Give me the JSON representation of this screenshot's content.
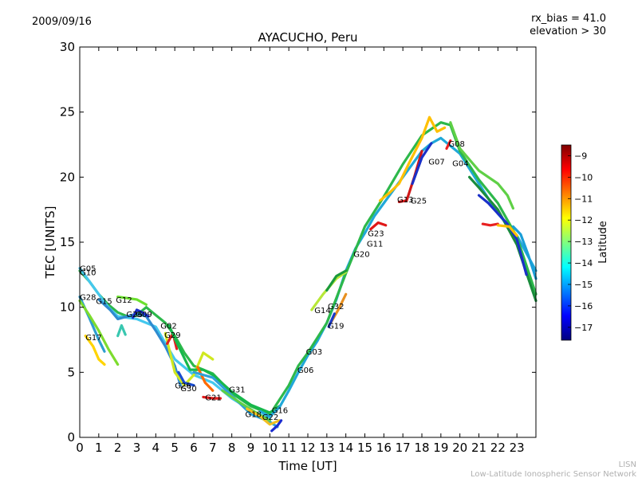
{
  "header": {
    "date": "2009/09/16",
    "rx_bias": "rx_bias = 41.0",
    "elevation": "elevation > 30"
  },
  "footer": {
    "org_short": "LISN",
    "org_full": "Low-Latitude Ionospheric Sensor Network"
  },
  "colorbar": {
    "label": "Latitude",
    "ticks": [
      -9,
      -10,
      -11,
      -12,
      -13,
      -14,
      -15,
      -16,
      -17
    ],
    "range": [
      -17.6,
      -8.5
    ],
    "colormap": [
      "#00007f",
      "#0000ff",
      "#007fff",
      "#00ffff",
      "#7fff7f",
      "#ffff00",
      "#ff7f00",
      "#ff0000",
      "#7f0000"
    ]
  },
  "chart_data": {
    "type": "line",
    "title": "AYACUCHO, Peru",
    "xlabel": "Time [UT]",
    "ylabel": "TEC [UNITS]",
    "xlim": [
      0,
      24
    ],
    "ylim": [
      0,
      30
    ],
    "xticks": [
      0,
      1,
      2,
      3,
      4,
      5,
      6,
      7,
      8,
      9,
      10,
      11,
      12,
      13,
      14,
      15,
      16,
      17,
      18,
      19,
      20,
      21,
      22,
      23
    ],
    "yticks": [
      0,
      5,
      10,
      15,
      20,
      25,
      30
    ],
    "grid": false,
    "series": [
      {
        "color": "#2db84b",
        "points": [
          [
            0,
            12.8
          ],
          [
            0.5,
            12.0
          ],
          [
            1.0,
            11.0
          ],
          [
            1.5,
            10.2
          ],
          [
            2.0,
            9.6
          ],
          [
            2.5,
            9.3
          ],
          [
            3.0,
            9.4
          ],
          [
            3.5,
            10.0
          ],
          [
            4.0,
            9.4
          ],
          [
            4.5,
            8.8
          ],
          [
            5.0,
            7.8
          ],
          [
            5.5,
            6.5
          ],
          [
            6.0,
            5.5
          ],
          [
            7.0,
            4.9
          ],
          [
            8.0,
            3.4
          ],
          [
            9.0,
            2.4
          ],
          [
            10.0,
            1.8
          ]
        ]
      },
      {
        "color": "#44c8ee",
        "points": [
          [
            0,
            13.0
          ],
          [
            0.5,
            12.0
          ],
          [
            1.0,
            11.0
          ],
          [
            1.5,
            10.0
          ],
          [
            2.0,
            9.3
          ],
          [
            3.0,
            9.1
          ],
          [
            4.0,
            8.5
          ],
          [
            5.0,
            6.0
          ],
          [
            6.0,
            4.8
          ],
          [
            7.0,
            4.2
          ],
          [
            8.0,
            3.0
          ],
          [
            9.0,
            2.1
          ],
          [
            10.0,
            1.4
          ]
        ]
      },
      {
        "color": "#2e9ed0",
        "points": [
          [
            0,
            10.8
          ],
          [
            0.5,
            9.2
          ],
          [
            1.0,
            7.5
          ],
          [
            1.3,
            6.6
          ]
        ]
      },
      {
        "color": "#7ddc2e",
        "points": [
          [
            0,
            10.5
          ],
          [
            0.5,
            9.4
          ],
          [
            1.0,
            8.2
          ],
          [
            1.5,
            6.8
          ],
          [
            2.0,
            5.6
          ]
        ]
      },
      {
        "color": "#ffd400",
        "points": [
          [
            0.3,
            7.8
          ],
          [
            0.7,
            7.0
          ],
          [
            1.0,
            6.0
          ],
          [
            1.3,
            5.6
          ]
        ]
      },
      {
        "color": "#2e8bd0",
        "points": [
          [
            1.0,
            10.6
          ],
          [
            1.6,
            9.8
          ],
          [
            2.0,
            9.1
          ],
          [
            3.0,
            9.5
          ],
          [
            3.5,
            9.3
          ],
          [
            4.0,
            8.2
          ],
          [
            4.5,
            7.0
          ],
          [
            5.0,
            5.5
          ],
          [
            5.3,
            4.0
          ]
        ]
      },
      {
        "color": "#1a2ec8",
        "points": [
          [
            2.8,
            9.2
          ],
          [
            3.0,
            9.8
          ],
          [
            3.3,
            9.6
          ],
          [
            3.6,
            9.3
          ]
        ]
      },
      {
        "color": "#6be02e",
        "points": [
          [
            2.0,
            10.8
          ],
          [
            2.5,
            10.7
          ],
          [
            3.0,
            10.6
          ],
          [
            3.5,
            10.2
          ]
        ]
      },
      {
        "color": "#39c7b0",
        "points": [
          [
            2.0,
            7.8
          ],
          [
            2.2,
            8.6
          ],
          [
            2.4,
            7.9
          ]
        ]
      },
      {
        "color": "#d0e820",
        "points": [
          [
            4.5,
            8.0
          ],
          [
            5.0,
            5.0
          ],
          [
            5.5,
            4.0
          ],
          [
            6.0,
            4.8
          ],
          [
            6.5,
            6.5
          ],
          [
            7.0,
            6.0
          ]
        ]
      },
      {
        "color": "#e02020",
        "points": [
          [
            4.6,
            7.2
          ],
          [
            4.9,
            8.0
          ],
          [
            5.1,
            6.8
          ]
        ]
      },
      {
        "color": "#16b84b",
        "points": [
          [
            4.7,
            8.6
          ],
          [
            5.0,
            7.6
          ],
          [
            5.4,
            6.4
          ],
          [
            5.8,
            5.2
          ],
          [
            6.5,
            5.2
          ],
          [
            7.0,
            4.8
          ],
          [
            8.0,
            3.5
          ],
          [
            9.0,
            2.5
          ],
          [
            10.0,
            1.9
          ],
          [
            10.5,
            2.4
          ]
        ]
      },
      {
        "color": "#1a4ccf",
        "points": [
          [
            5.2,
            5.0
          ],
          [
            5.5,
            4.2
          ],
          [
            6.0,
            4.0
          ]
        ]
      },
      {
        "color": "#ff6a00",
        "points": [
          [
            6.2,
            5.4
          ],
          [
            6.6,
            4.2
          ],
          [
            7.0,
            3.6
          ]
        ]
      },
      {
        "color": "#e01c1c",
        "points": [
          [
            6.5,
            3.1
          ],
          [
            7.0,
            3.0
          ],
          [
            7.4,
            3.0
          ]
        ]
      },
      {
        "color": "#2ea0d8",
        "points": [
          [
            6.0,
            5.0
          ],
          [
            7.0,
            4.6
          ],
          [
            8.0,
            3.2
          ],
          [
            9.0,
            1.8
          ],
          [
            10.0,
            1.2
          ],
          [
            10.4,
            0.8
          ]
        ]
      },
      {
        "color": "#5fd046",
        "points": [
          [
            7.5,
            3.6
          ],
          [
            8.5,
            2.6
          ],
          [
            9.5,
            1.7
          ],
          [
            10.0,
            1.3
          ]
        ]
      },
      {
        "color": "#f0c020",
        "points": [
          [
            8.8,
            2.2
          ],
          [
            9.5,
            1.6
          ],
          [
            10.0,
            1.0
          ],
          [
            10.5,
            1.3
          ]
        ]
      },
      {
        "color": "#1a2bd0",
        "points": [
          [
            10.1,
            0.5
          ],
          [
            10.4,
            0.9
          ],
          [
            10.6,
            1.3
          ]
        ]
      },
      {
        "color": "#20a8d8",
        "points": [
          [
            9.5,
            2.0
          ],
          [
            10.0,
            1.6
          ],
          [
            10.5,
            2.3
          ],
          [
            11.0,
            3.6
          ],
          [
            11.5,
            5.0
          ],
          [
            12.0,
            6.3
          ],
          [
            12.5,
            7.4
          ],
          [
            13.0,
            8.8
          ],
          [
            13.5,
            10.6
          ],
          [
            14.0,
            12.8
          ],
          [
            14.5,
            14.5
          ],
          [
            15.0,
            15.7
          ],
          [
            15.5,
            17.0
          ],
          [
            16.0,
            18.0
          ],
          [
            17.0,
            20.0
          ],
          [
            18.0,
            22.0
          ],
          [
            18.5,
            22.6
          ],
          [
            19.0,
            23.0
          ],
          [
            20.0,
            21.8
          ],
          [
            21.0,
            19.5
          ],
          [
            22.0,
            17.2
          ],
          [
            23.0,
            15.5
          ],
          [
            24,
            12.8
          ]
        ]
      },
      {
        "color": "#2db84b",
        "points": [
          [
            10.2,
            2.2
          ],
          [
            11.0,
            4.0
          ],
          [
            11.5,
            5.5
          ],
          [
            12.0,
            6.5
          ],
          [
            13.0,
            8.8
          ],
          [
            14.0,
            12.6
          ],
          [
            15.0,
            16.2
          ],
          [
            16.0,
            18.5
          ],
          [
            17.0,
            21.0
          ],
          [
            18.0,
            23.2
          ],
          [
            19.0,
            24.2
          ],
          [
            19.5,
            24.0
          ],
          [
            20.0,
            22.0
          ],
          [
            21.0,
            19.8
          ],
          [
            22.0,
            18.0
          ],
          [
            23.0,
            15.4
          ],
          [
            24,
            11.0
          ]
        ]
      },
      {
        "color": "#b8e838",
        "points": [
          [
            12.2,
            9.8
          ],
          [
            12.8,
            11.0
          ],
          [
            13.5,
            12.2
          ],
          [
            14.0,
            12.7
          ]
        ]
      },
      {
        "color": "#1a9a3b",
        "points": [
          [
            13.0,
            11.3
          ],
          [
            13.5,
            12.4
          ],
          [
            14.0,
            12.8
          ]
        ]
      },
      {
        "color": "#e89020",
        "points": [
          [
            13.2,
            8.8
          ],
          [
            13.6,
            9.8
          ],
          [
            14.0,
            11.0
          ]
        ]
      },
      {
        "color": "#1a3bc8",
        "points": [
          [
            13.1,
            8.5
          ],
          [
            13.4,
            9.5
          ]
        ]
      },
      {
        "color": "#e01818",
        "points": [
          [
            15.3,
            16.0
          ],
          [
            15.7,
            16.5
          ],
          [
            16.1,
            16.3
          ]
        ]
      },
      {
        "color": "#ffc000",
        "points": [
          [
            15.8,
            18.2
          ],
          [
            16.3,
            18.8
          ],
          [
            16.8,
            19.5
          ],
          [
            17.3,
            21.0
          ],
          [
            18.0,
            23.0
          ],
          [
            18.4,
            24.6
          ],
          [
            18.8,
            23.5
          ],
          [
            19.2,
            23.8
          ]
        ]
      },
      {
        "color": "#d01818",
        "points": [
          [
            16.8,
            18.1
          ],
          [
            17.2,
            18.2
          ],
          [
            17.6,
            20.0
          ],
          [
            18.0,
            22.0
          ]
        ]
      },
      {
        "color": "#ee2020",
        "points": [
          [
            19.3,
            22.2
          ],
          [
            19.5,
            22.8
          ]
        ]
      },
      {
        "color": "#1a30c8",
        "points": [
          [
            17.5,
            19.5
          ],
          [
            18.0,
            21.5
          ],
          [
            18.5,
            22.6
          ]
        ]
      },
      {
        "color": "#5fd046",
        "points": [
          [
            19.5,
            24.2
          ],
          [
            20.0,
            22.2
          ],
          [
            21.0,
            20.5
          ],
          [
            22.0,
            19.5
          ],
          [
            22.5,
            18.6
          ],
          [
            22.8,
            17.6
          ]
        ]
      },
      {
        "color": "#1a8c3c",
        "points": [
          [
            20.5,
            20.0
          ],
          [
            21.0,
            19.2
          ],
          [
            22.0,
            17.5
          ],
          [
            23.0,
            14.8
          ],
          [
            24,
            10.5
          ]
        ]
      },
      {
        "color": "#1a30c8",
        "points": [
          [
            21.0,
            18.6
          ],
          [
            21.5,
            18.0
          ],
          [
            22.0,
            17.2
          ],
          [
            22.5,
            16.4
          ],
          [
            23.0,
            15.2
          ],
          [
            23.5,
            12.5
          ]
        ]
      },
      {
        "color": "#e82020",
        "points": [
          [
            21.2,
            16.4
          ],
          [
            21.6,
            16.3
          ],
          [
            22.0,
            16.4
          ]
        ]
      },
      {
        "color": "#ffc000",
        "points": [
          [
            22.0,
            16.3
          ],
          [
            22.6,
            16.2
          ],
          [
            23.0,
            15.5
          ]
        ]
      },
      {
        "color": "#1a9ed8",
        "points": [
          [
            22.8,
            16.2
          ],
          [
            23.2,
            15.6
          ],
          [
            23.6,
            14.0
          ],
          [
            24,
            12.2
          ]
        ]
      }
    ],
    "annotations": [
      {
        "text": "G05",
        "x": 0.0,
        "y": 13.0
      },
      {
        "text": "G10",
        "x": 0.0,
        "y": 12.7
      },
      {
        "text": "G28",
        "x": 0.0,
        "y": 10.8
      },
      {
        "text": "G15",
        "x": 0.85,
        "y": 10.5
      },
      {
        "text": "G12",
        "x": 1.9,
        "y": 10.6
      },
      {
        "text": "G26",
        "x": 2.45,
        "y": 9.5
      },
      {
        "text": "G09",
        "x": 2.95,
        "y": 9.5
      },
      {
        "text": "G17",
        "x": 0.3,
        "y": 7.7
      },
      {
        "text": "G02",
        "x": 4.25,
        "y": 8.6
      },
      {
        "text": "G29",
        "x": 4.45,
        "y": 7.9
      },
      {
        "text": "G26",
        "x": 5.0,
        "y": 4.0
      },
      {
        "text": "G30",
        "x": 5.3,
        "y": 3.8
      },
      {
        "text": "G21",
        "x": 6.6,
        "y": 3.1
      },
      {
        "text": "G31",
        "x": 7.85,
        "y": 3.7
      },
      {
        "text": "G18",
        "x": 8.7,
        "y": 1.8
      },
      {
        "text": "G22",
        "x": 9.6,
        "y": 1.6
      },
      {
        "text": "G16",
        "x": 10.1,
        "y": 2.1
      },
      {
        "text": "G06",
        "x": 11.45,
        "y": 5.2
      },
      {
        "text": "G03",
        "x": 11.9,
        "y": 6.6
      },
      {
        "text": "G14",
        "x": 12.35,
        "y": 9.8
      },
      {
        "text": "G32",
        "x": 13.05,
        "y": 10.1
      },
      {
        "text": "G19",
        "x": 13.05,
        "y": 8.6
      },
      {
        "text": "G20",
        "x": 14.4,
        "y": 14.1
      },
      {
        "text": "G11",
        "x": 15.1,
        "y": 14.9
      },
      {
        "text": "G23",
        "x": 15.15,
        "y": 15.7
      },
      {
        "text": "G13",
        "x": 16.7,
        "y": 18.3
      },
      {
        "text": "G25",
        "x": 17.4,
        "y": 18.2
      },
      {
        "text": "G07",
        "x": 18.35,
        "y": 21.2
      },
      {
        "text": "G08",
        "x": 19.4,
        "y": 22.6
      },
      {
        "text": "G04",
        "x": 19.6,
        "y": 21.1
      }
    ]
  }
}
